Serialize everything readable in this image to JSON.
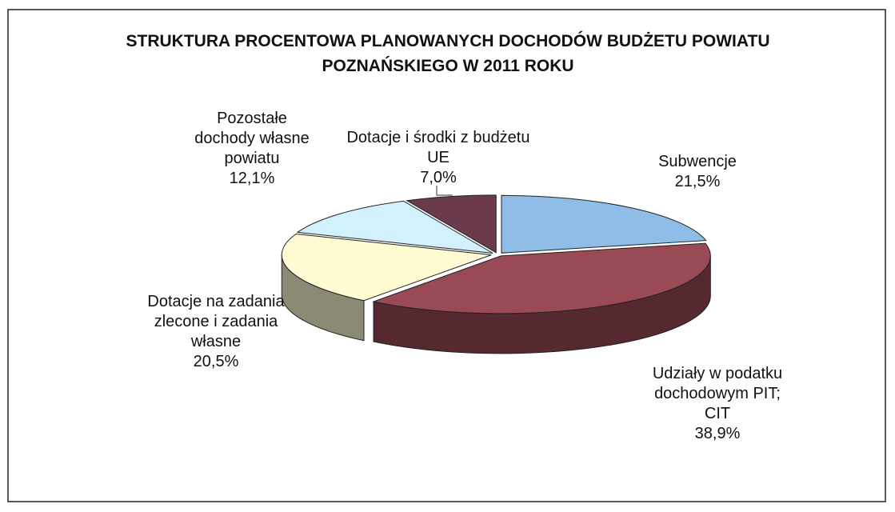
{
  "chart_data": {
    "type": "pie3d",
    "title": "STRUKTURA PROCENTOWA PLANOWANYCH DOCHODÓW BUDŻETU POWIATU POZNAŃSKIEGO W 2011 ROKU",
    "categories": [
      "Subwencje",
      "Udziały w podatku dochodowym PIT; CIT",
      "Dotacje na zadania zlecone i zadania własne",
      "Pozostałe dochody własne powiatu",
      "Dotacje i środki z budżetu UE"
    ],
    "values": [
      21.5,
      38.9,
      20.5,
      12.1,
      7.0
    ],
    "value_labels": [
      "21,5%",
      "38,9%",
      "20,5%",
      "12,1%",
      "7,0%"
    ],
    "colors": [
      "#8fbde8",
      "#9a4a55",
      "#fffbd2",
      "#d2f0fd",
      "#6b3a4d"
    ]
  }
}
